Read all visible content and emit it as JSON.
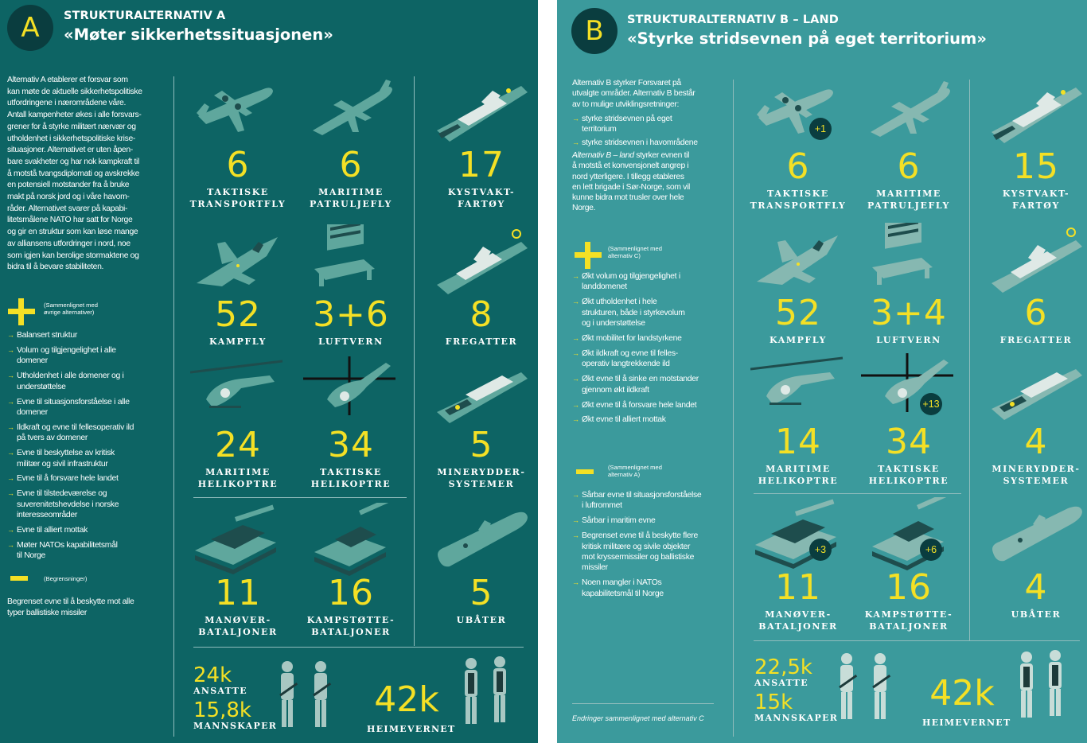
{
  "colors": {
    "panel_a": "#0d6464",
    "panel_b": "#3b9a9c",
    "accent": "#f4e025",
    "badge": "#0a3d3f"
  },
  "panel_a": {
    "letter": "A",
    "kicker": "STRUKTURALTERNATIV A",
    "title": "«Møter sikkerhetssituasjonen»",
    "intro_lines": [
      "Alternativ A etablerer et forsvar som",
      "kan møte de aktuelle sikkerhetspolitiske",
      "utfordringene i nærområdene våre.",
      "Antall kampenheter økes i alle forsvars-",
      "grener for å styrke militært nærvær og",
      "utholdenhet i sikkerhetspolitiske krise-",
      "situasjoner. Alternativet er uten åpen-",
      "bare svakheter og har nok kampkraft til",
      "å motstå tvangsdiplomati og avskrekke",
      "en potensiell motstander fra å bruke",
      "makt på norsk jord og i våre havom-",
      "råder. Alternativet svarer på kapabi-",
      "litetsmålene NATO har satt for Norge",
      "og gir en struktur som kan løse mange",
      "av alliansens utfordringer i nord, noe",
      "som igjen kan berolige stormaktene og",
      "bidra til å bevare stabiliteten."
    ],
    "plus_note_lines": [
      "(Sammenlignet med",
      "øvrige alternativer)"
    ],
    "plus_items": [
      [
        "Balansert struktur"
      ],
      [
        "Volum og tilgjengelighet i alle",
        "domener"
      ],
      [
        "Utholdenhet i alle domener og i",
        "understøttelse"
      ],
      [
        "Evne til situasjonsforståelse i alle",
        "domener"
      ],
      [
        "Ildkraft og evne til fellesoperativ ild",
        "på tvers av domener"
      ],
      [
        "Evne til beskyttelse av kritisk",
        "militær og sivil infrastruktur"
      ],
      [
        "Evne til å forsvare hele landet"
      ],
      [
        "Evne til tilstedeværelse og",
        "suverenitetshevdelse i norske",
        "interesseområder"
      ],
      [
        "Evne til alliert mottak"
      ],
      [
        "Møter NATOs kapabilitetsmål",
        "til Norge"
      ]
    ],
    "minus_note": "(Begrensninger)",
    "minus_lines": [
      "Begrenset evne til å beskytte mot alle",
      "typer ballistiske missiler"
    ],
    "units": [
      {
        "icon": "transport-plane-icon",
        "value": "6",
        "label": [
          "TAKTISKE",
          "TRANSPORTFLY"
        ]
      },
      {
        "icon": "patrol-plane-icon",
        "value": "6",
        "label": [
          "MARITIME",
          "PATRULJEFLY"
        ]
      },
      {
        "icon": "coast-guard-ship-icon",
        "value": "17",
        "label": [
          "KYSTVAKT-",
          "FARTØY"
        ]
      },
      {
        "icon": "fighter-jet-icon",
        "value": "52",
        "label": [
          "KAMPFLY"
        ]
      },
      {
        "icon": "air-defense-icon",
        "value": "3+6",
        "label": [
          "LUFTVERN"
        ]
      },
      {
        "icon": "frigate-icon",
        "value": "8",
        "label": [
          "FREGATTER"
        ]
      },
      {
        "icon": "maritime-helicopter-icon",
        "value": "24",
        "label": [
          "MARITIME",
          "HELIKOPTRE"
        ]
      },
      {
        "icon": "tactical-helicopter-icon",
        "value": "34",
        "label": [
          "TAKTISKE",
          "HELIKOPTRE"
        ]
      },
      {
        "icon": "mine-clearance-ship-icon",
        "value": "5",
        "label": [
          "MINERYDDER-",
          "SYSTEMER"
        ]
      },
      {
        "icon": "tank-icon",
        "value": "11",
        "label": [
          "MANØVER-",
          "BATALJONER"
        ]
      },
      {
        "icon": "artillery-icon",
        "value": "16",
        "label": [
          "KAMPSTØTTE-",
          "BATALJONER"
        ]
      },
      {
        "icon": "submarine-icon",
        "value": "5",
        "label": [
          "UBÅTER"
        ]
      }
    ],
    "personnel": {
      "employees": "24k",
      "employees_label": "ANSATTE",
      "conscripts": "15,8k",
      "conscripts_label": "MANNSKAPER",
      "home_guard": "42k",
      "home_guard_label": "HEIMEVERNET"
    }
  },
  "panel_b": {
    "letter": "B",
    "kicker": "STRUKTURALTERNATIV B – LAND",
    "title": "«Styrke stridsevnen på eget territorium»",
    "intro_lines": [
      "Alternativ B styrker Forsvaret på",
      "utvalgte områder. Alternativ B består",
      "av to mulige utviklingsretninger:"
    ],
    "directions": [
      [
        "styrke stridsevnen på eget",
        "territorium"
      ],
      [
        "styrke stridsevnen i havområdene"
      ]
    ],
    "intro2_italic": "Alternativ B – land",
    "intro2_first_rest": " styrker evnen til",
    "intro2_lines": [
      "å motstå et konvensjonelt angrep i",
      "nord ytterligere. I tillegg etableres",
      "en lett brigade i Sør-Norge, som vil",
      "kunne bidra mot trusler over hele",
      "Norge."
    ],
    "plus_note_lines": [
      "(Sammenlignet med",
      "alternativ C)"
    ],
    "plus_items": [
      [
        "Økt volum og tilgjengelighet i",
        "landdomenet"
      ],
      [
        "Økt utholdenhet i hele",
        "strukturen, både i styrkevolum",
        "og i understøttelse"
      ],
      [
        "Økt mobilitet for landstyrkene"
      ],
      [
        "Økt ildkraft og evne til felles-",
        "operativ langtrekkende ild"
      ],
      [
        "Økt evne til å sinke en motstander",
        "gjennom økt ildkraft"
      ],
      [
        "Økt evne til å forsvare hele landet"
      ],
      [
        "Økt evne til alliert mottak"
      ]
    ],
    "minus_note_lines": [
      "(Sammenlignet med",
      "alternativ A)"
    ],
    "minus_items": [
      [
        "Sårbar evne til situasjonsforståelse",
        "i luftrommet"
      ],
      [
        "Sårbar i maritim evne"
      ],
      [
        "Begrenset evne til å beskytte flere",
        "kritisk militære og sivile objekter",
        "mot kryssermissiler og ballistiske",
        "missiler"
      ],
      [
        "Noen mangler i NATOs",
        "kapabilitetsmål til Norge"
      ]
    ],
    "footnote": "Endringer sammenlignet med alternativ C",
    "units": [
      {
        "icon": "transport-plane-icon",
        "value": "6",
        "label": [
          "TAKTISKE",
          "TRANSPORTFLY"
        ],
        "delta": "+1"
      },
      {
        "icon": "patrol-plane-icon",
        "value": "6",
        "label": [
          "MARITIME",
          "PATRULJEFLY"
        ],
        "delta": ""
      },
      {
        "icon": "coast-guard-ship-icon",
        "value": "15",
        "label": [
          "KYSTVAKT-",
          "FARTØY"
        ],
        "delta": ""
      },
      {
        "icon": "fighter-jet-icon",
        "value": "52",
        "label": [
          "KAMPFLY"
        ],
        "delta": ""
      },
      {
        "icon": "air-defense-icon",
        "value": "3+4",
        "label": [
          "LUFTVERN"
        ],
        "delta": ""
      },
      {
        "icon": "frigate-icon",
        "value": "6",
        "label": [
          "FREGATTER"
        ],
        "delta": ""
      },
      {
        "icon": "maritime-helicopter-icon",
        "value": "14",
        "label": [
          "MARITIME",
          "HELIKOPTRE"
        ],
        "delta": ""
      },
      {
        "icon": "tactical-helicopter-icon",
        "value": "34",
        "label": [
          "TAKTISKE",
          "HELIKOPTRE"
        ],
        "delta": "+13"
      },
      {
        "icon": "mine-clearance-ship-icon",
        "value": "4",
        "label": [
          "MINERYDDER-",
          "SYSTEMER"
        ],
        "delta": ""
      },
      {
        "icon": "tank-icon",
        "value": "11",
        "label": [
          "MANØVER-",
          "BATALJONER"
        ],
        "delta": "+3"
      },
      {
        "icon": "artillery-icon",
        "value": "16",
        "label": [
          "KAMPSTØTTE-",
          "BATALJONER"
        ],
        "delta": "+6"
      },
      {
        "icon": "submarine-icon",
        "value": "4",
        "label": [
          "UBÅTER"
        ],
        "delta": ""
      }
    ],
    "personnel": {
      "employees": "22,5k",
      "employees_label": "ANSATTE",
      "conscripts": "15k",
      "conscripts_label": "MANNSKAPER",
      "home_guard": "42k",
      "home_guard_label": "HEIMEVERNET"
    }
  }
}
